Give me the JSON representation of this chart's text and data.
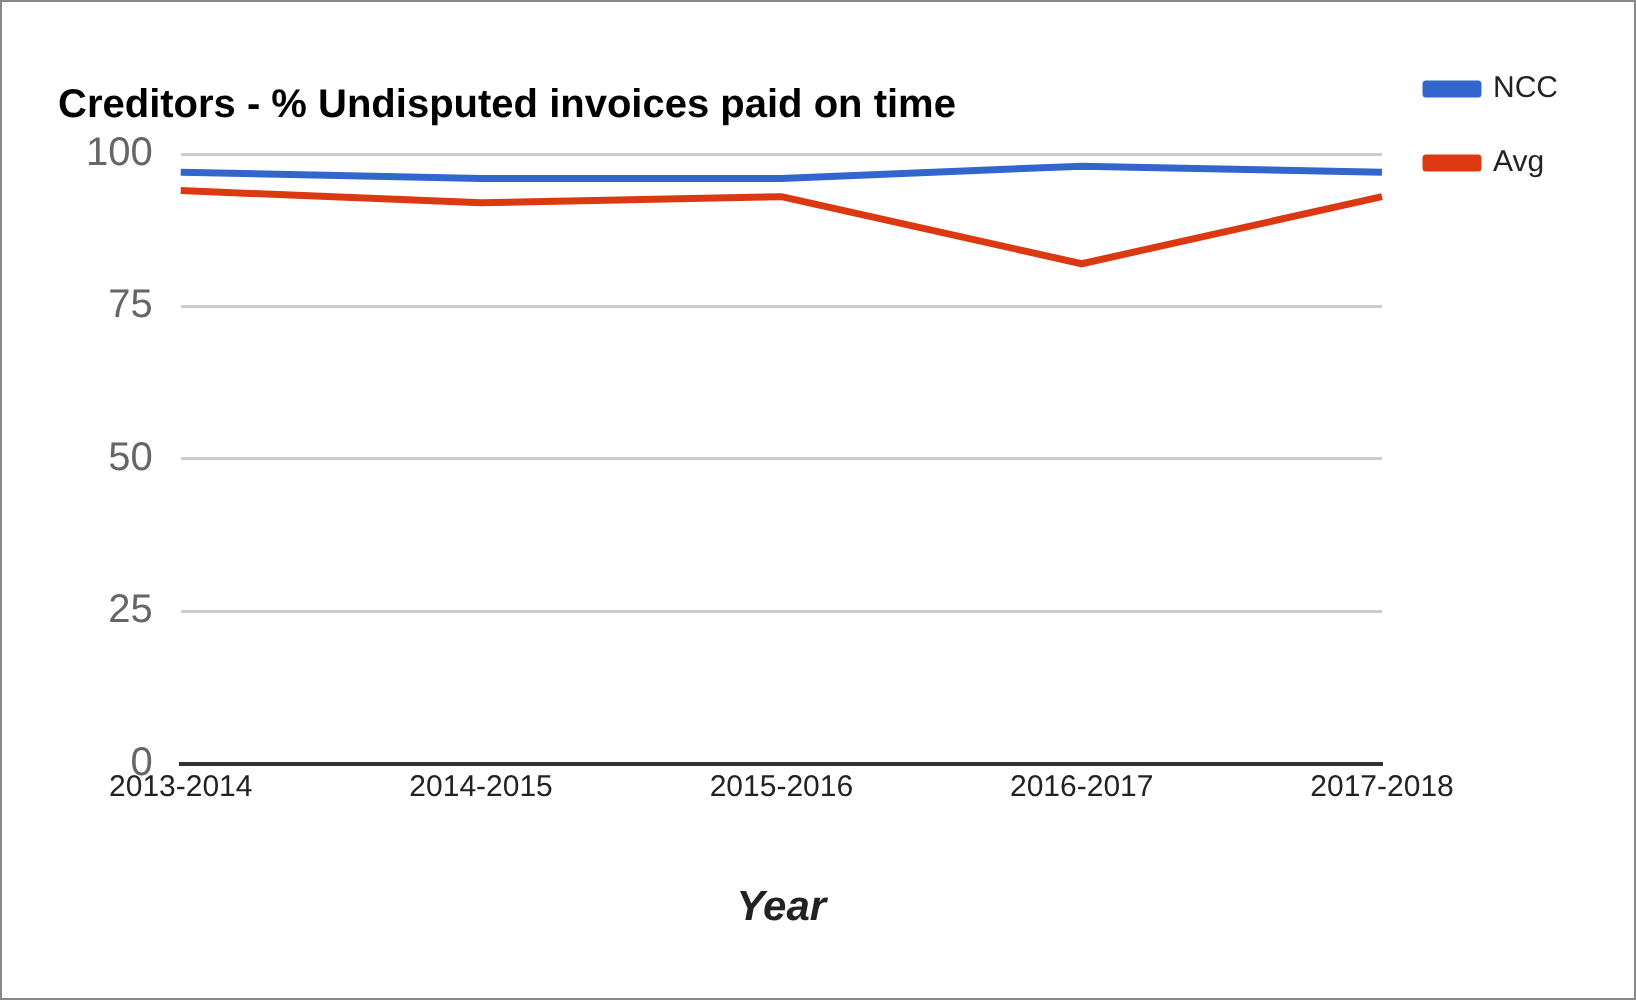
{
  "chart_data": {
    "type": "line",
    "title": "Creditors - % Undisputed invoices paid on time",
    "xlabel": "Year",
    "categories": [
      "2013-2014",
      "2014-2015",
      "2015-2016",
      "2016-2017",
      "2017-2018"
    ],
    "series": [
      {
        "name": "NCC",
        "color": "#3366cc",
        "values": [
          97,
          96,
          96,
          98,
          97
        ]
      },
      {
        "name": "Avg",
        "color": "#dc3912",
        "values": [
          94,
          92,
          93,
          82,
          93
        ]
      }
    ],
    "ylim": [
      0,
      100
    ],
    "yticks": [
      0,
      25,
      50,
      75,
      100
    ],
    "grid": "y",
    "legend": "right",
    "marker": "none",
    "line_style": "solid"
  }
}
